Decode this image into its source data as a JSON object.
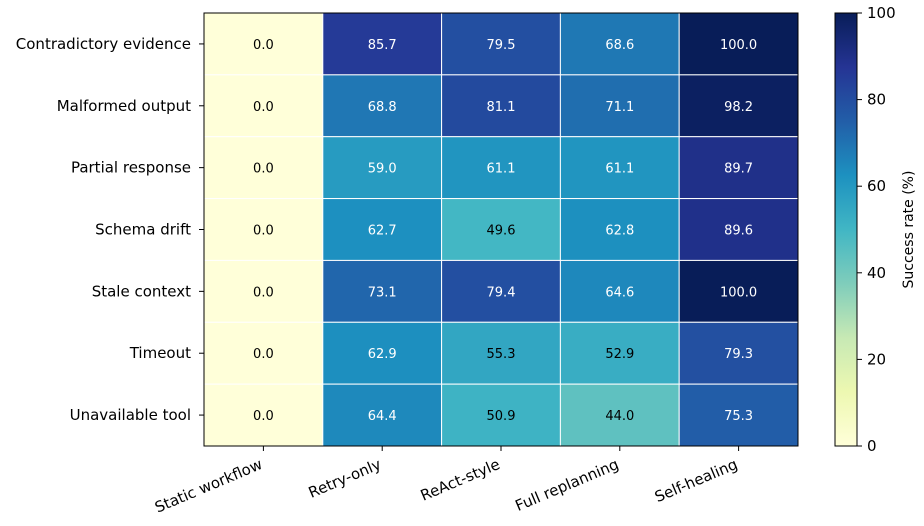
{
  "chart_data": {
    "type": "heatmap",
    "title": "",
    "xlabel": "",
    "ylabel": "",
    "x_categories": [
      "Static workflow",
      "Retry-only",
      "ReAct-style",
      "Full replanning",
      "Self-healing"
    ],
    "y_categories": [
      "Contradictory evidence",
      "Malformed output",
      "Partial response",
      "Schema drift",
      "Stale context",
      "Timeout",
      "Unavailable tool"
    ],
    "values": [
      [
        0.0,
        85.7,
        79.5,
        68.6,
        100.0
      ],
      [
        0.0,
        68.8,
        81.1,
        71.1,
        98.2
      ],
      [
        0.0,
        59.0,
        61.1,
        61.1,
        89.7
      ],
      [
        0.0,
        62.7,
        49.6,
        62.8,
        89.6
      ],
      [
        0.0,
        73.1,
        79.4,
        64.6,
        100.0
      ],
      [
        0.0,
        62.9,
        55.3,
        52.9,
        79.3
      ],
      [
        0.0,
        64.4,
        50.9,
        44.0,
        75.3
      ]
    ],
    "value_format": "0.0",
    "colormap": "YlGnBu",
    "colorbar": {
      "label": "Success rate (%)",
      "range": [
        0,
        100
      ],
      "ticks": [
        0,
        20,
        40,
        60,
        80,
        100
      ]
    },
    "grid": true,
    "legend": "none"
  }
}
